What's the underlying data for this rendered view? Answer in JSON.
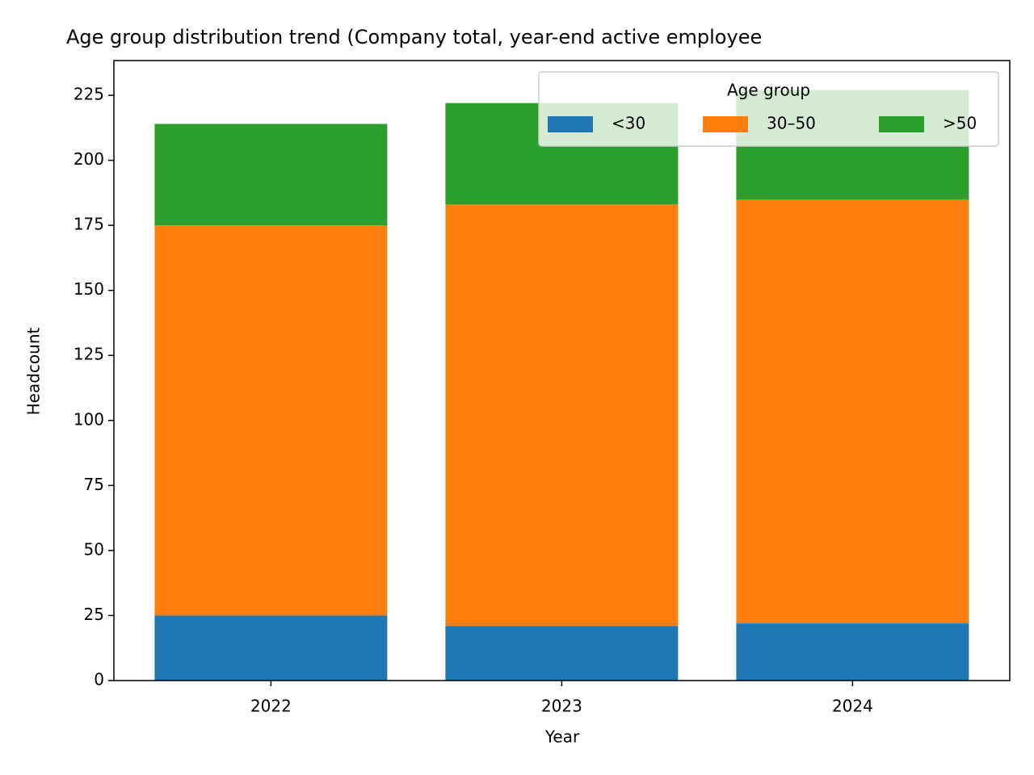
{
  "chart_data": {
    "type": "stacked_bar",
    "title": "Age group distribution trend (Company total, year-end active employee",
    "x_label": "Year",
    "y_label": "Headcount",
    "categories": [
      "2022",
      "2023",
      "2024"
    ],
    "series": [
      {
        "name": "<30",
        "color": "#1f77b4",
        "values": [
          25,
          21,
          22
        ]
      },
      {
        "name": "30–50",
        "color": "#ff7f0e",
        "values": [
          150,
          162,
          163
        ]
      },
      {
        "name": ">50",
        "color": "#2ca02c",
        "values": [
          39,
          39,
          42
        ]
      }
    ],
    "ylim": [
      0,
      238.35
    ],
    "yticks": [
      0,
      25,
      50,
      75,
      100,
      125,
      150,
      175,
      200,
      225
    ],
    "legend": {
      "title": "Age group",
      "loc": "upper right"
    }
  }
}
